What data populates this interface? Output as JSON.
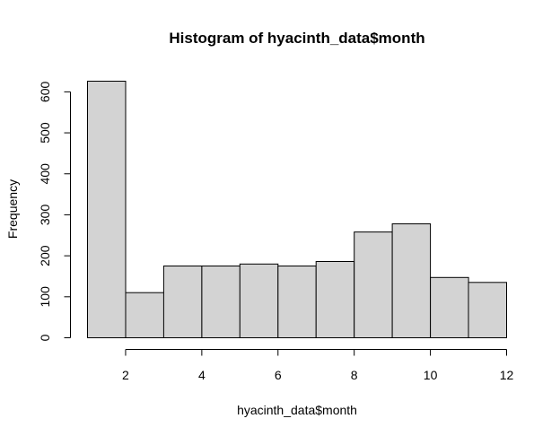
{
  "chart_data": {
    "type": "bar",
    "title": "Histogram of hyacinth_data$month",
    "xlabel": "hyacinth_data$month",
    "ylabel": "Frequency",
    "bin_edges": [
      1,
      2,
      3,
      4,
      5,
      6,
      7,
      8,
      9,
      10,
      11,
      12
    ],
    "values": [
      626,
      110,
      175,
      175,
      180,
      175,
      186,
      258,
      278,
      147,
      135
    ],
    "xlim": [
      1,
      12
    ],
    "ylim": [
      0,
      626
    ],
    "x_ticks": [
      2,
      4,
      6,
      8,
      10,
      12
    ],
    "y_ticks": [
      0,
      100,
      200,
      300,
      400,
      500,
      600
    ],
    "grid": false,
    "colors": {
      "bar_fill": "#d3d3d3",
      "bar_stroke": "#000000"
    }
  }
}
